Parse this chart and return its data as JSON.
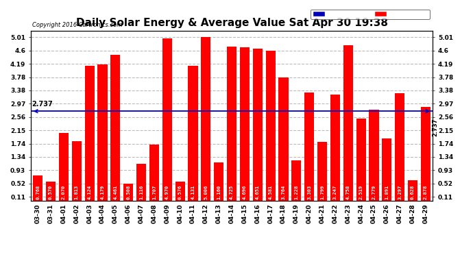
{
  "title": "Daily Solar Energy & Average Value Sat Apr 30 19:38",
  "copyright": "Copyright 2016 Cartronics.com",
  "categories": [
    "03-30",
    "03-31",
    "04-01",
    "04-02",
    "04-03",
    "04-04",
    "04-05",
    "04-06",
    "04-07",
    "04-08",
    "04-09",
    "04-10",
    "04-11",
    "04-12",
    "04-13",
    "04-14",
    "04-15",
    "04-16",
    "04-17",
    "04-18",
    "04-19",
    "04-20",
    "04-21",
    "04-22",
    "04-23",
    "04-24",
    "04-25",
    "04-26",
    "04-27",
    "04-28",
    "04-29"
  ],
  "values": [
    0.768,
    0.57,
    2.07,
    1.813,
    4.124,
    4.179,
    4.461,
    0.508,
    1.116,
    1.707,
    4.97,
    0.576,
    4.131,
    5.006,
    1.16,
    4.725,
    4.696,
    4.651,
    4.581,
    3.764,
    1.228,
    3.303,
    1.799,
    3.247,
    4.758,
    2.519,
    2.779,
    1.891,
    3.297,
    0.628,
    2.878
  ],
  "average": 2.737,
  "yticks": [
    0.11,
    0.52,
    0.93,
    1.34,
    1.74,
    2.15,
    2.56,
    2.97,
    3.38,
    3.78,
    4.19,
    4.6,
    5.01
  ],
  "ymin": 0.0,
  "ymax": 5.2,
  "bar_color": "#ff0000",
  "avg_line_color": "#0000cc",
  "background_color": "#ffffff",
  "grid_color": "#aaaaaa",
  "title_fontsize": 11,
  "bar_label_fontsize": 5.0,
  "tick_fontsize": 6.5,
  "legend_avg_color": "#0000bb",
  "legend_daily_color": "#ff0000"
}
